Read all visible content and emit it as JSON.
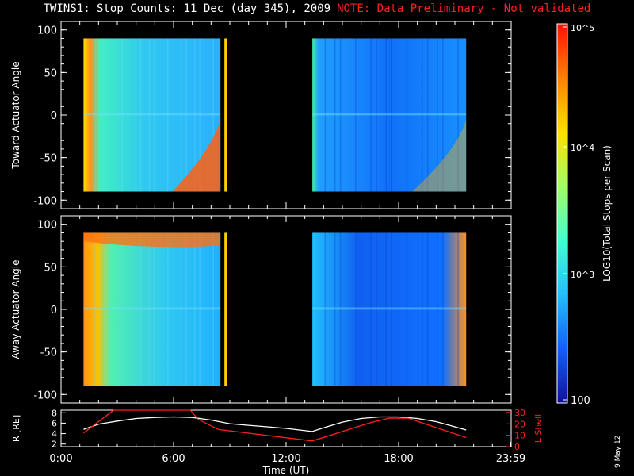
{
  "header": {
    "title": "TWINS1: Stop Counts: 11 Dec (day 345), 2009",
    "note": "NOTE: Data Preliminary - Not validated"
  },
  "date_stamp": "9 May 12",
  "colorbar": {
    "label": "LOG10(Total Stops per Scan)",
    "ticks": [
      "10^5",
      "10^4",
      "10^3",
      "100"
    ],
    "colors": [
      "#1010a0",
      "#1060ff",
      "#20c0ff",
      "#40ffd0",
      "#a0ff60",
      "#ffe000",
      "#ff8000",
      "#ff1000"
    ]
  },
  "chart_data": [
    {
      "type": "heatmap",
      "name": "toward-panel",
      "ylabel": "Toward Actuator Angle",
      "xlim": [
        0,
        24
      ],
      "ylim": [
        -110,
        110
      ],
      "yticks": [
        100,
        50,
        0,
        -50,
        -100
      ],
      "data_intervals_hours": [
        [
          1.2,
          8.5
        ],
        [
          13.4,
          21.6
        ]
      ],
      "angle_range": [
        -90,
        90
      ]
    },
    {
      "type": "heatmap",
      "name": "away-panel",
      "ylabel": "Away Actuator Angle",
      "xlim": [
        0,
        24
      ],
      "ylim": [
        -110,
        110
      ],
      "yticks": [
        100,
        50,
        0,
        -50,
        -100
      ],
      "data_intervals_hours": [
        [
          1.2,
          8.5
        ],
        [
          13.4,
          21.6
        ]
      ],
      "angle_range": [
        -90,
        90
      ]
    },
    {
      "type": "line",
      "name": "orbit-panel",
      "xlabel": "Time (UT)",
      "xtick_labels": [
        "0:00",
        "6:00",
        "12:00",
        "18:00",
        "23:59"
      ],
      "xticks_hours": [
        0,
        6,
        12,
        18,
        23.98
      ],
      "ylabel_left": "R [RE]",
      "yticks_left": [
        8,
        6,
        4,
        2
      ],
      "ylim_left": [
        1.5,
        8.5
      ],
      "ylabel_right": "L Shell",
      "yticks_right": [
        30,
        20,
        10,
        0
      ],
      "ylim_right": [
        0,
        32
      ],
      "series": [
        {
          "name": "R [RE]",
          "color": "#ffffff",
          "x": [
            1.2,
            2,
            3,
            4,
            5,
            6,
            7,
            8,
            9,
            10,
            11,
            12,
            13.4,
            14,
            15,
            16,
            17,
            18,
            19,
            20,
            21,
            21.6
          ],
          "y": [
            4.8,
            5.8,
            6.4,
            6.9,
            7.1,
            7.2,
            7.1,
            6.6,
            5.9,
            5.6,
            5.3,
            5.0,
            4.4,
            5.1,
            6.2,
            6.9,
            7.2,
            7.2,
            6.9,
            6.3,
            5.3,
            4.7
          ]
        },
        {
          "name": "L Shell",
          "color": "#ff2020",
          "x": [
            1.2,
            2.8,
            3.2,
            6.9,
            7.3,
            8.4,
            13.4,
            16.5,
            17.5,
            18.5,
            21.6
          ],
          "y": [
            12,
            32,
            32,
            32,
            24,
            15,
            5,
            21,
            25,
            25,
            8
          ]
        }
      ]
    }
  ]
}
